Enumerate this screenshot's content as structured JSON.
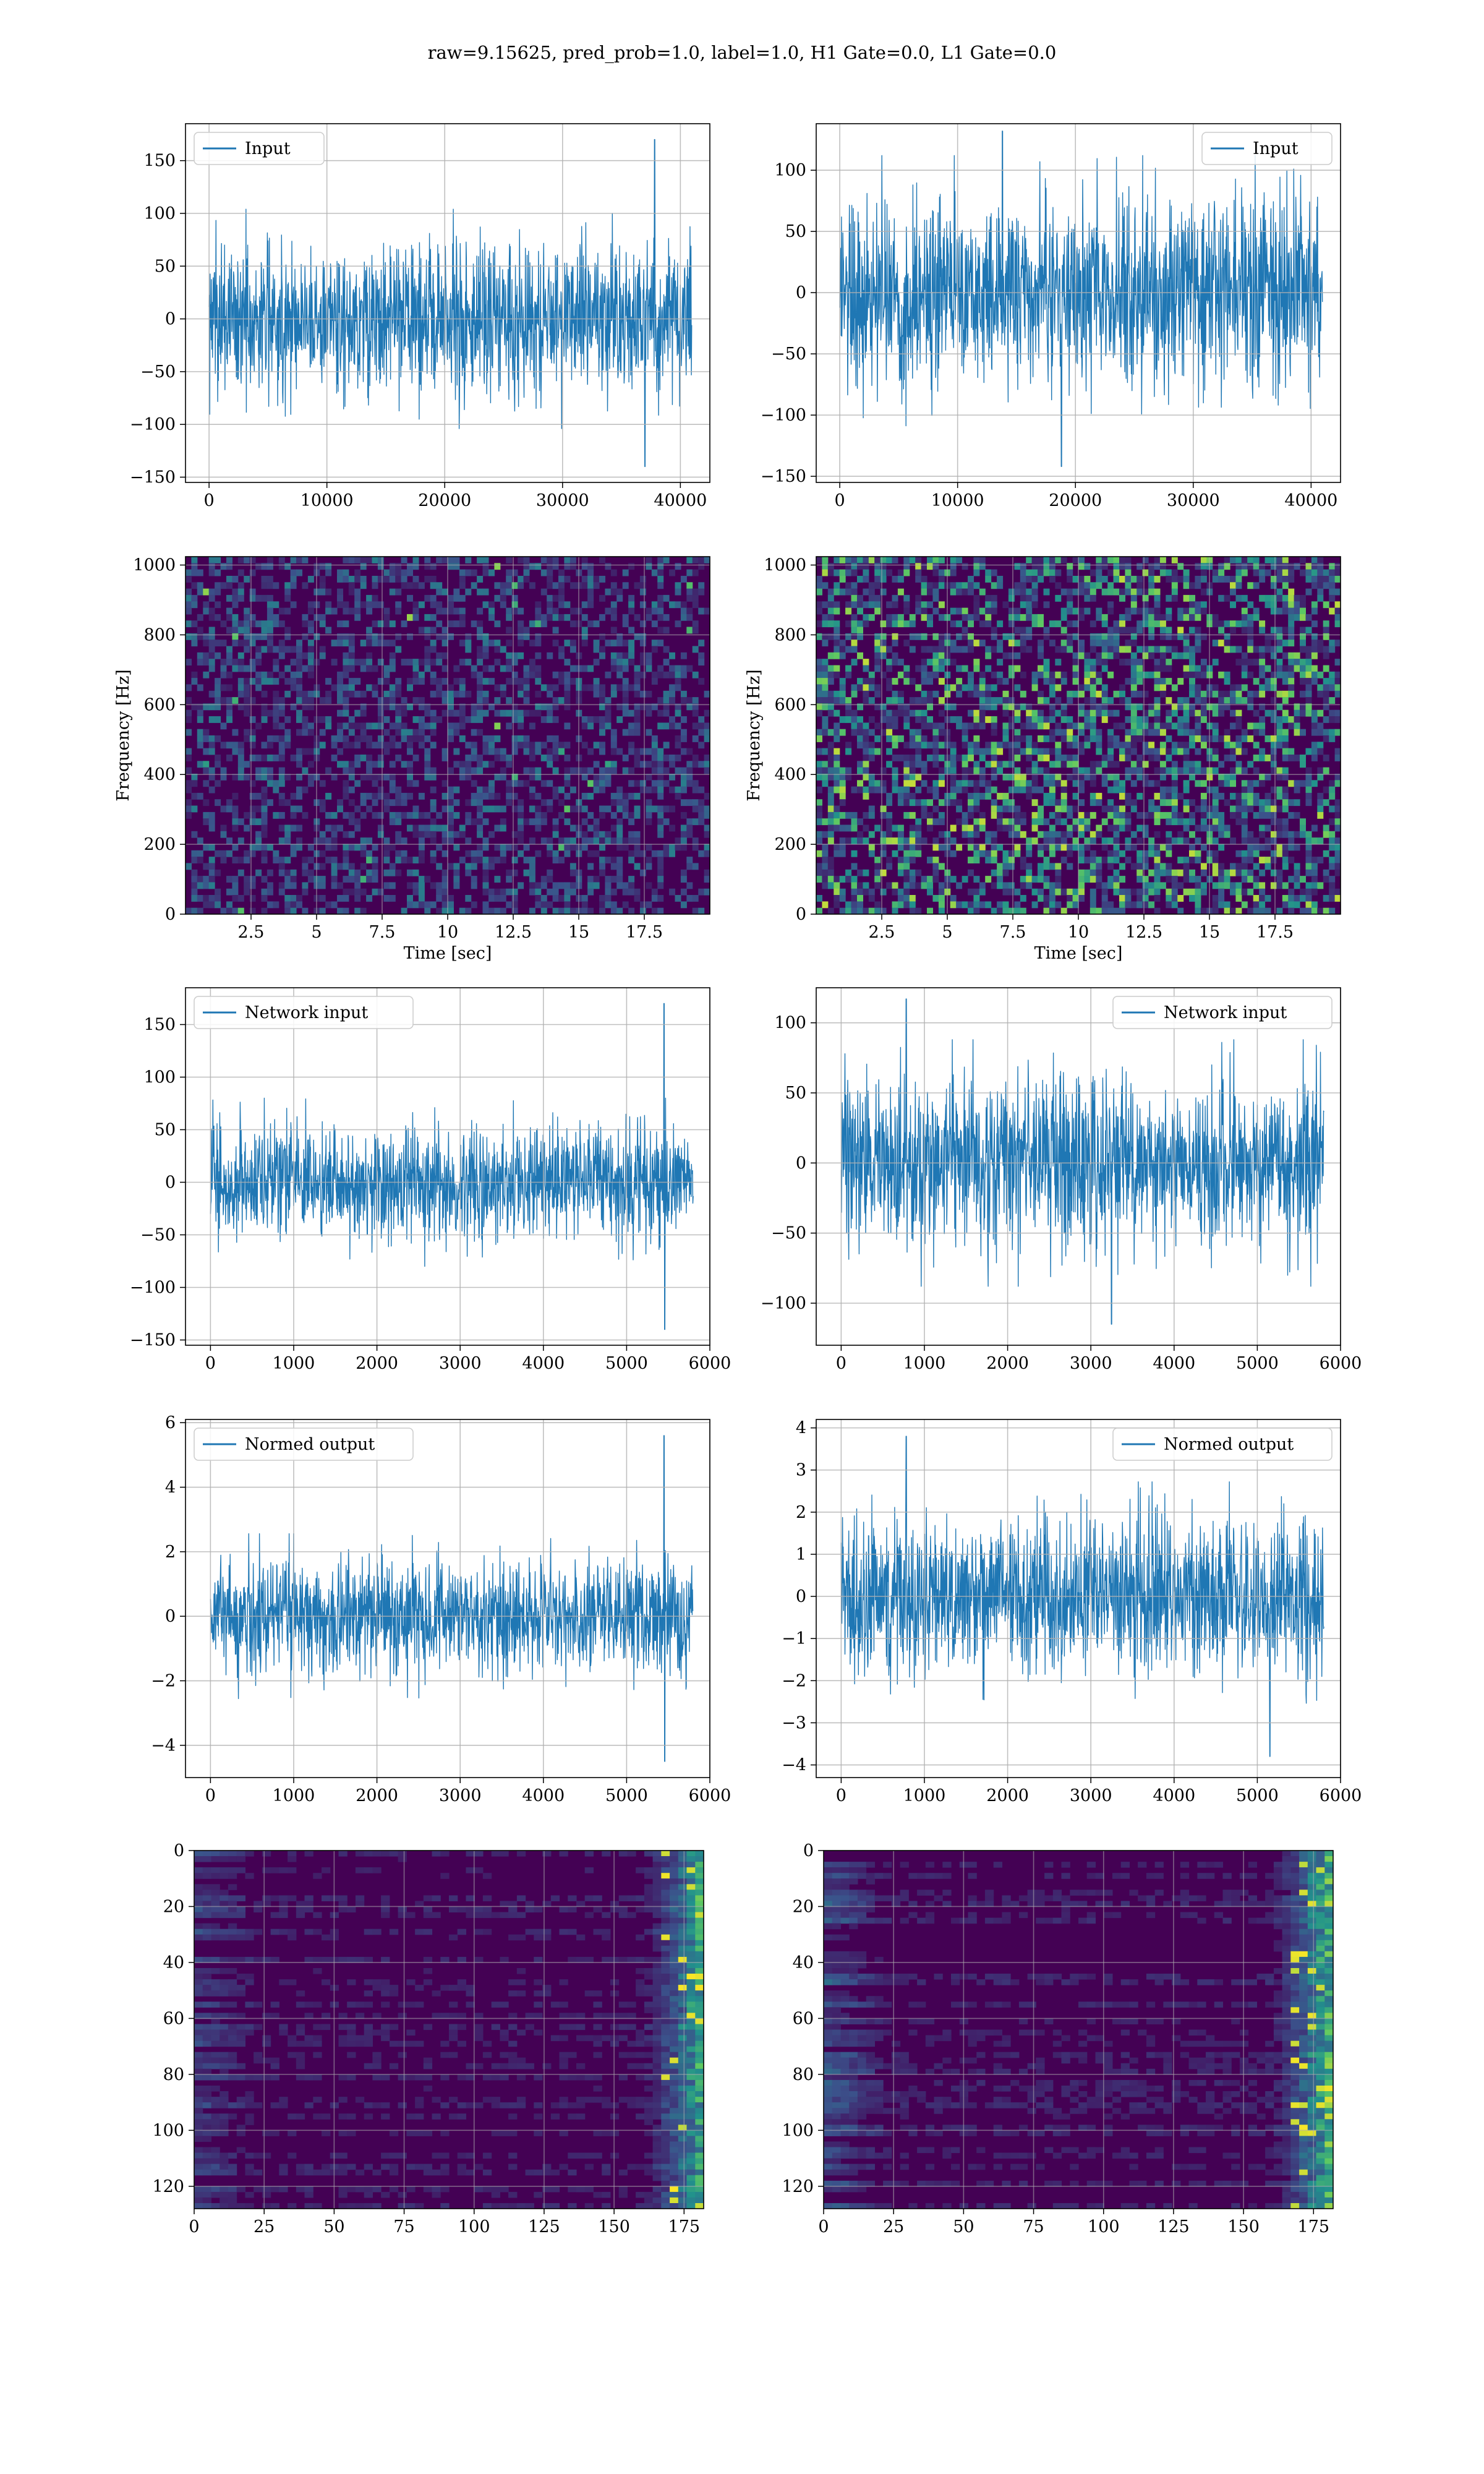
{
  "figure": {
    "suptitle": "raw=9.15625, pred_prob=1.0, label=1.0, H1 Gate=0.0, L1 Gate=0.0"
  },
  "colors": {
    "line": "#1f77b4",
    "grid": "#b0b0b0",
    "viridis_dark": "#440154",
    "viridis_mid": "#3b528b",
    "viridis_teal": "#21918c",
    "viridis_green": "#5ec962",
    "viridis_yellow": "#fde725"
  },
  "chart_data": [
    {
      "id": "input-h1",
      "type": "line",
      "legend": "Input",
      "legend_loc": "upper left",
      "xlim": [
        -2000,
        42500
      ],
      "ylim": [
        -155,
        185
      ],
      "xticks": [
        0,
        10000,
        20000,
        30000,
        40000
      ],
      "yticks": [
        -150,
        -100,
        -50,
        0,
        50,
        100,
        150
      ],
      "series": [
        {
          "x_range": [
            0,
            40960
          ],
          "amplitude": 65,
          "peak": 170,
          "peak_x": 37800,
          "min": -140,
          "min_x": 37000
        }
      ]
    },
    {
      "id": "input-l1",
      "type": "line",
      "legend": "Input",
      "legend_loc": "upper right",
      "xlim": [
        -2000,
        42500
      ],
      "ylim": [
        -155,
        138
      ],
      "xticks": [
        0,
        10000,
        20000,
        30000,
        40000
      ],
      "yticks": [
        -150,
        -100,
        -50,
        0,
        50,
        100
      ],
      "series": [
        {
          "x_range": [
            0,
            40960
          ],
          "amplitude": 70,
          "peak": 132,
          "peak_x": 13800,
          "min": -142,
          "min_x": 18800
        }
      ]
    },
    {
      "id": "spectrogram-h1",
      "type": "heatmap",
      "xlabel": "Time [sec]",
      "ylabel": "Frequency [Hz]",
      "xlim": [
        0,
        20
      ],
      "ylim": [
        0,
        1024
      ],
      "xticks": [
        2.5,
        5.0,
        7.5,
        10.0,
        12.5,
        15.0,
        17.5
      ],
      "yticks": [
        0,
        200,
        400,
        600,
        800,
        1000
      ],
      "intensity": 0.25
    },
    {
      "id": "spectrogram-l1",
      "type": "heatmap",
      "xlabel": "Time [sec]",
      "ylabel": "Frequency [Hz]",
      "xlim": [
        0,
        20
      ],
      "ylim": [
        0,
        1024
      ],
      "xticks": [
        2.5,
        5.0,
        7.5,
        10.0,
        12.5,
        15.0,
        17.5
      ],
      "yticks": [
        0,
        200,
        400,
        600,
        800,
        1000
      ],
      "intensity": 0.55
    },
    {
      "id": "network-input-h1",
      "type": "line",
      "legend": "Network input",
      "legend_loc": "upper left",
      "xlim": [
        -300,
        6000
      ],
      "ylim": [
        -155,
        185
      ],
      "xticks": [
        0,
        1000,
        2000,
        3000,
        4000,
        5000,
        6000
      ],
      "yticks": [
        -150,
        -100,
        -50,
        0,
        50,
        100,
        150
      ],
      "series": [
        {
          "x_range": [
            0,
            5800
          ],
          "amplitude": 50,
          "peak": 170,
          "peak_x": 5450,
          "min": -140,
          "min_x": 5460
        }
      ]
    },
    {
      "id": "network-input-l1",
      "type": "line",
      "legend": "Network input",
      "legend_loc": "upper right",
      "xlim": [
        -300,
        6000
      ],
      "ylim": [
        -130,
        125
      ],
      "xticks": [
        0,
        1000,
        2000,
        3000,
        4000,
        5000,
        6000
      ],
      "yticks": [
        -100,
        -50,
        0,
        50,
        100
      ],
      "series": [
        {
          "x_range": [
            0,
            5800
          ],
          "amplitude": 55,
          "peak": 117,
          "peak_x": 780,
          "min": -115,
          "min_x": 3250
        }
      ]
    },
    {
      "id": "normed-output-h1",
      "type": "line",
      "legend": "Normed output",
      "legend_loc": "upper left",
      "xlim": [
        -300,
        6000
      ],
      "ylim": [
        -5,
        6.1
      ],
      "xticks": [
        0,
        1000,
        2000,
        3000,
        4000,
        5000,
        6000
      ],
      "yticks": [
        -4,
        -2,
        0,
        2,
        4,
        6
      ],
      "series": [
        {
          "x_range": [
            0,
            5800
          ],
          "amplitude": 1.6,
          "peak": 5.6,
          "peak_x": 5450,
          "min": -4.5,
          "min_x": 5460
        }
      ]
    },
    {
      "id": "normed-output-l1",
      "type": "line",
      "legend": "Normed output",
      "legend_loc": "upper right",
      "xlim": [
        -300,
        6000
      ],
      "ylim": [
        -4.3,
        4.2
      ],
      "xticks": [
        0,
        1000,
        2000,
        3000,
        4000,
        5000,
        6000
      ],
      "yticks": [
        -4,
        -3,
        -2,
        -1,
        0,
        1,
        2,
        3,
        4
      ],
      "series": [
        {
          "x_range": [
            0,
            5800
          ],
          "amplitude": 1.7,
          "peak": 3.8,
          "peak_x": 780,
          "min": -3.8,
          "min_x": 5150
        }
      ]
    },
    {
      "id": "feature-map-h1",
      "type": "heatmap",
      "xlim": [
        0,
        182
      ],
      "ylim": [
        128,
        0
      ],
      "xticks": [
        0,
        25,
        50,
        75,
        100,
        125,
        150,
        175
      ],
      "yticks": [
        0,
        20,
        40,
        60,
        80,
        100,
        120
      ],
      "intensity": 0.3
    },
    {
      "id": "feature-map-l1",
      "type": "heatmap",
      "xlim": [
        0,
        182
      ],
      "ylim": [
        128,
        0
      ],
      "xticks": [
        0,
        25,
        50,
        75,
        100,
        125,
        150,
        175
      ],
      "yticks": [
        0,
        20,
        40,
        60,
        80,
        100,
        120
      ],
      "intensity": 0.45
    }
  ]
}
